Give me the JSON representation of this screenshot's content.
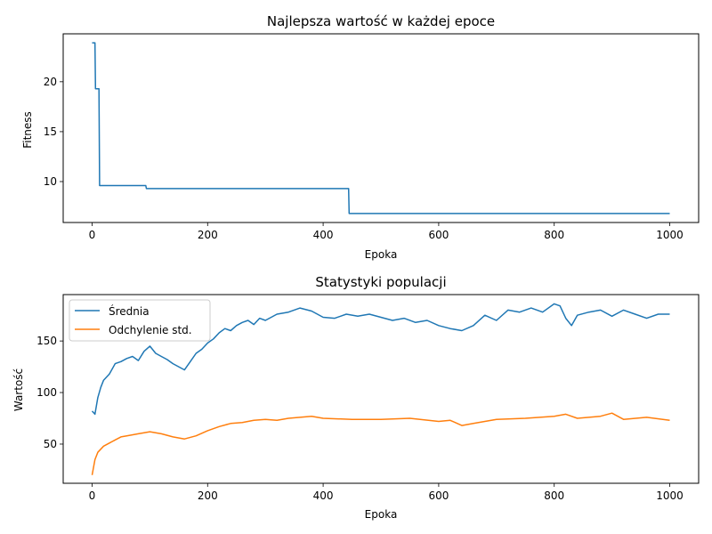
{
  "chart_data": [
    {
      "type": "line",
      "title": "Najlepsza wartość w każdej epoce",
      "xlabel": "Epoka",
      "ylabel": "Fitness",
      "xlim": [
        -50,
        1050
      ],
      "ylim": [
        5.9,
        24.8
      ],
      "xticks": [
        0,
        200,
        400,
        600,
        800,
        1000
      ],
      "yticks": [
        10,
        15,
        20
      ],
      "grid": false,
      "series": [
        {
          "color": "#1f77b4",
          "x": [
            0,
            5,
            6,
            12,
            13,
            93,
            94,
            444,
            445,
            1000
          ],
          "values": [
            23.9,
            23.9,
            19.3,
            19.3,
            9.6,
            9.6,
            9.3,
            9.3,
            6.8,
            6.8
          ]
        }
      ]
    },
    {
      "type": "line",
      "title": "Statystyki populacji",
      "xlabel": "Epoka",
      "ylabel": "Wartość",
      "xlim": [
        -50,
        1050
      ],
      "ylim": [
        12,
        195
      ],
      "xticks": [
        0,
        200,
        400,
        600,
        800,
        1000
      ],
      "yticks": [
        50,
        100,
        150
      ],
      "grid": false,
      "legend": "top-left",
      "series": [
        {
          "name": "Średnia",
          "color": "#1f77b4",
          "x": [
            0,
            5,
            10,
            15,
            20,
            30,
            40,
            50,
            60,
            70,
            80,
            90,
            100,
            110,
            120,
            130,
            140,
            150,
            160,
            170,
            180,
            190,
            200,
            210,
            220,
            230,
            240,
            250,
            260,
            270,
            280,
            290,
            300,
            320,
            340,
            360,
            380,
            400,
            420,
            440,
            460,
            480,
            500,
            520,
            540,
            560,
            580,
            600,
            620,
            640,
            660,
            680,
            700,
            720,
            740,
            760,
            780,
            800,
            810,
            820,
            830,
            840,
            860,
            880,
            900,
            920,
            940,
            960,
            980,
            1000
          ],
          "values": [
            82,
            79,
            95,
            105,
            112,
            118,
            128,
            130,
            133,
            135,
            131,
            140,
            145,
            138,
            135,
            132,
            128,
            125,
            122,
            130,
            138,
            142,
            148,
            152,
            158,
            162,
            160,
            165,
            168,
            170,
            166,
            172,
            170,
            176,
            178,
            182,
            179,
            173,
            172,
            176,
            174,
            176,
            173,
            170,
            172,
            168,
            170,
            165,
            162,
            160,
            165,
            175,
            170,
            180,
            178,
            182,
            178,
            186,
            184,
            172,
            165,
            175,
            178,
            180,
            174,
            180,
            176,
            172,
            176,
            176
          ]
        },
        {
          "name": "Odchylenie std.",
          "color": "#ff7f0e",
          "x": [
            0,
            5,
            10,
            20,
            30,
            40,
            50,
            60,
            80,
            100,
            120,
            140,
            160,
            180,
            200,
            220,
            240,
            260,
            280,
            300,
            320,
            340,
            360,
            380,
            400,
            450,
            500,
            550,
            600,
            620,
            640,
            660,
            680,
            700,
            750,
            800,
            820,
            840,
            880,
            900,
            920,
            960,
            1000
          ],
          "values": [
            20,
            35,
            42,
            48,
            51,
            54,
            57,
            58,
            60,
            62,
            60,
            57,
            55,
            58,
            63,
            67,
            70,
            71,
            73,
            74,
            73,
            75,
            76,
            77,
            75,
            74,
            74,
            75,
            72,
            73,
            68,
            70,
            72,
            74,
            75,
            77,
            79,
            75,
            77,
            80,
            74,
            76,
            73
          ]
        }
      ]
    }
  ]
}
